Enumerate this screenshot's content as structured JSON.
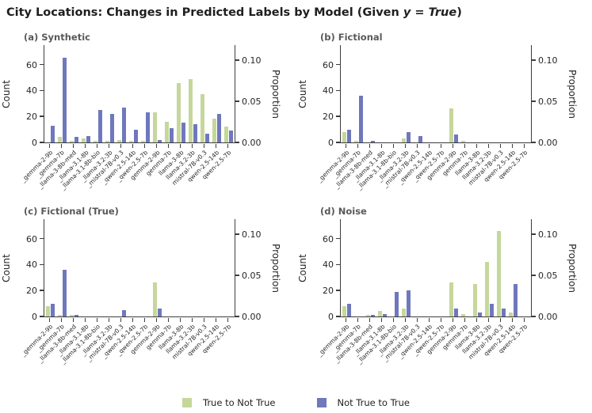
{
  "title": {
    "text_before_math": "City Locations: Changes in Predicted Labels by Model (Given ",
    "math_text": "y = True",
    "text_after_math": ")"
  },
  "axes": {
    "count_label": "Count",
    "proportion_label": "Proportion",
    "count_ticks": [
      0,
      20,
      40,
      60
    ],
    "proportion_ticks": [
      "0.00",
      "0.05",
      "0.10"
    ]
  },
  "legend": {
    "items": [
      {
        "label": "True to Not True",
        "color": "#c5d79b"
      },
      {
        "label": "Not True to True",
        "color": "#6f78bc"
      }
    ]
  },
  "colors": {
    "green": "#c5d79b",
    "purple": "#6f78bc",
    "spine": "#3d3d3d"
  },
  "chart_data": [
    {
      "type": "bar",
      "title": "(a) Synthetic",
      "categories": [
        "_gemma-2-9b",
        "_gemma-7b",
        "_llama-3-8b-med",
        "_llama-3.1-8b",
        "_llama-3.1-8b-bio",
        "_llama-3.2-3b",
        "_mistral-7B-v0.3",
        "_qwen-2.5-14b",
        "_qwen-2.5-7b",
        "gemma-2-9b",
        "gemma-7b",
        "llama-3-8b",
        "llama-3.2-3b",
        "mistral-7B-v0.3",
        "qwen-2.5-14b",
        "qwen-2.5-7b"
      ],
      "series": [
        {
          "name": "True to Not True",
          "values": [
            0,
            4,
            1,
            3,
            1,
            1,
            2,
            1,
            1,
            23,
            16,
            46,
            49,
            37,
            18,
            12
          ]
        },
        {
          "name": "Not True to True",
          "values": [
            13,
            65,
            4,
            5,
            25,
            22,
            27,
            10,
            23,
            2,
            11,
            15,
            14,
            7,
            22,
            9
          ]
        }
      ],
      "ylabel": "Count",
      "y2label": "Proportion",
      "ylim": [
        0,
        75
      ],
      "y2lim": [
        0,
        0.118
      ],
      "yticks": [
        0,
        20,
        40,
        60
      ],
      "y2ticks": [
        0.0,
        0.05,
        0.1
      ]
    },
    {
      "type": "bar",
      "title": "(b) Fictional",
      "categories": [
        "_gemma-2-9b",
        "_gemma-7b",
        "_llama-3-8b-med",
        "_llama-3.1-8b",
        "_llama-3.1-8b-bio",
        "_llama-3.2-3b",
        "_mistral-7B-v0.3",
        "_qwen-2.5-14b",
        "_qwen-2.5-7b",
        "gemma-2-9b",
        "gemma-7b",
        "llama-3-8b",
        "llama-3.2-3b",
        "mistral-7B-v0.3",
        "qwen-2.5-14b",
        "qwen-2.5-7b"
      ],
      "series": [
        {
          "name": "True to Not True",
          "values": [
            8,
            1,
            0,
            0,
            0,
            3,
            0,
            0,
            0,
            26,
            1,
            0,
            0,
            0,
            0,
            0
          ]
        },
        {
          "name": "Not True to True",
          "values": [
            10,
            36,
            1,
            0,
            0,
            8,
            5,
            0,
            0,
            6,
            0,
            0,
            0,
            0,
            0,
            0
          ]
        }
      ],
      "ylabel": "Count",
      "y2label": "Proportion",
      "ylim": [
        0,
        75
      ],
      "y2lim": [
        0,
        0.118
      ],
      "yticks": [
        0,
        20,
        40,
        60
      ],
      "y2ticks": [
        0.0,
        0.05,
        0.1
      ]
    },
    {
      "type": "bar",
      "title": "(c) Fictional (True)",
      "categories": [
        "_gemma-2-9b",
        "_gemma-7b",
        "_llama-3-8b-med",
        "_llama-3.1-8b",
        "_llama-3.1-8b-bio",
        "_llama-3.2-3b",
        "_mistral-7B-v0.3",
        "_qwen-2.5-14b",
        "_qwen-2.5-7b",
        "gemma-2-9b",
        "gemma-7b",
        "llama-3-8b",
        "llama-3.2-3b",
        "mistral-7B-v0.3",
        "qwen-2.5-14b",
        "qwen-2.5-7b"
      ],
      "series": [
        {
          "name": "True to Not True",
          "values": [
            8,
            1,
            1,
            0,
            0,
            0,
            0,
            0,
            0,
            26,
            0,
            0,
            0,
            0,
            0,
            0
          ]
        },
        {
          "name": "Not True to True",
          "values": [
            10,
            36,
            1,
            0,
            0,
            0,
            5,
            0,
            0,
            6,
            0,
            0,
            0,
            0,
            0,
            0
          ]
        }
      ],
      "ylabel": "Count",
      "y2label": "Proportion",
      "ylim": [
        0,
        75
      ],
      "y2lim": [
        0,
        0.118
      ],
      "yticks": [
        0,
        20,
        40,
        60
      ],
      "y2ticks": [
        0.0,
        0.05,
        0.1
      ]
    },
    {
      "type": "bar",
      "title": "(d) Noise",
      "categories": [
        "_gemma-2-9b",
        "_gemma-7b",
        "_llama-3-8b-med",
        "_llama-3.1-8b",
        "_llama-3.1-8b-bio",
        "_llama-3.2-3b",
        "_mistral-7B-v0.3",
        "_qwen-2.5-14b",
        "_qwen-2.5-7b",
        "gemma-2-9b",
        "gemma-7b",
        "llama-3-8b",
        "llama-3.2-3b",
        "mistral-7B-v0.3",
        "qwen-2.5-14b",
        "qwen-2.5-7b"
      ],
      "series": [
        {
          "name": "True to Not True",
          "values": [
            8,
            0,
            1,
            4,
            0,
            6,
            0,
            0,
            0,
            26,
            2,
            25,
            42,
            66,
            3,
            0
          ]
        },
        {
          "name": "Not True to True",
          "values": [
            10,
            0,
            1,
            2,
            19,
            20,
            0,
            0,
            0,
            6,
            0,
            3,
            10,
            6,
            25,
            0
          ]
        }
      ],
      "ylabel": "Count",
      "y2label": "Proportion",
      "ylim": [
        0,
        75
      ],
      "y2lim": [
        0,
        0.118
      ],
      "yticks": [
        0,
        20,
        40,
        60
      ],
      "y2ticks": [
        0.0,
        0.05,
        0.1
      ]
    }
  ]
}
